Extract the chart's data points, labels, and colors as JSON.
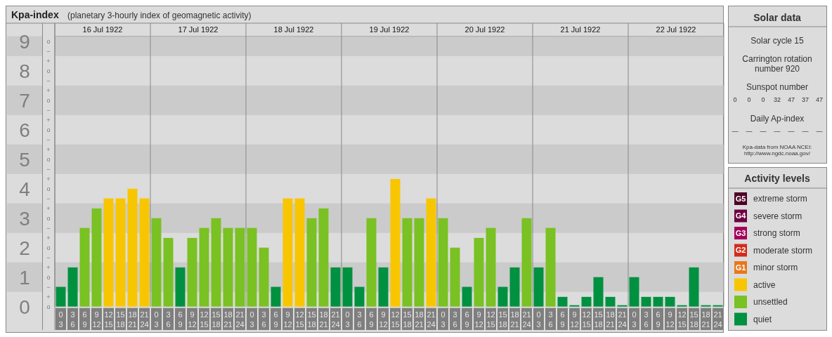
{
  "chart_data": {
    "type": "bar",
    "title": "Kpa-index",
    "subtitle": "(planetary 3-hourly index of geomagnetic activity)",
    "categories": [
      "0\n3",
      "3\n6",
      "6\n9",
      "9\n12",
      "12\n15",
      "15\n18",
      "18\n21",
      "21\n24",
      "0\n3",
      "3\n6",
      "6\n9",
      "9\n12",
      "12\n15",
      "15\n18",
      "18\n21",
      "21\n24",
      "0\n3",
      "3\n6",
      "6\n9",
      "9\n12",
      "12\n15",
      "15\n18",
      "18\n21",
      "21\n24",
      "0\n3",
      "3\n6",
      "6\n9",
      "9\n12",
      "12\n15",
      "15\n18",
      "18\n21",
      "21\n24",
      "0\n3",
      "3\n6",
      "6\n9",
      "9\n12",
      "12\n15",
      "15\n18",
      "18\n21",
      "21\n24",
      "0\n3",
      "3\n6",
      "6\n9",
      "9\n12",
      "12\n15",
      "15\n18",
      "18\n21",
      "21\n24",
      "0\n3",
      "3\n6",
      "6\n9",
      "9\n12",
      "12\n15",
      "15\n18",
      "18\n21",
      "21\n24"
    ],
    "series": [
      {
        "name": "extreme storm",
        "color": "#4d0026",
        "values": [
          null,
          null,
          null,
          null,
          null,
          null,
          null,
          null,
          null,
          null,
          null,
          null,
          null,
          null,
          null,
          null,
          null,
          null,
          null,
          null,
          null,
          null,
          null,
          null,
          null,
          null,
          null,
          null,
          null,
          null,
          null,
          null,
          null,
          null,
          null,
          null,
          null,
          null,
          null,
          null,
          null,
          null,
          null,
          null,
          null,
          null,
          null,
          null,
          null,
          null,
          null,
          null,
          null,
          null,
          null,
          null
        ]
      },
      {
        "name": "severe storm",
        "color": "#6e0040",
        "values": [
          null,
          null,
          null,
          null,
          null,
          null,
          null,
          null,
          null,
          null,
          null,
          null,
          null,
          null,
          null,
          null,
          null,
          null,
          null,
          null,
          null,
          null,
          null,
          null,
          null,
          null,
          null,
          null,
          null,
          null,
          null,
          null,
          null,
          null,
          null,
          null,
          null,
          null,
          null,
          null,
          null,
          null,
          null,
          null,
          null,
          null,
          null,
          null,
          null,
          null,
          null,
          null,
          null,
          null,
          null,
          null
        ]
      },
      {
        "name": "strong storm",
        "color": "#a3005c",
        "values": [
          null,
          null,
          null,
          null,
          null,
          null,
          null,
          null,
          null,
          null,
          null,
          null,
          null,
          null,
          null,
          null,
          null,
          null,
          null,
          null,
          null,
          null,
          null,
          null,
          null,
          null,
          null,
          null,
          null,
          null,
          null,
          null,
          null,
          null,
          null,
          null,
          null,
          null,
          null,
          null,
          null,
          null,
          null,
          null,
          null,
          null,
          null,
          null,
          null,
          null,
          null,
          null,
          null,
          null,
          null,
          null
        ]
      },
      {
        "name": "moderate storm",
        "color": "#d42a1c",
        "values": [
          null,
          null,
          null,
          null,
          null,
          null,
          null,
          null,
          null,
          null,
          null,
          null,
          null,
          null,
          null,
          null,
          null,
          null,
          null,
          null,
          null,
          null,
          null,
          null,
          null,
          null,
          null,
          null,
          null,
          null,
          null,
          null,
          null,
          null,
          null,
          null,
          null,
          null,
          null,
          null,
          null,
          null,
          null,
          null,
          null,
          null,
          null,
          null,
          null,
          null,
          null,
          null,
          null,
          null,
          null,
          null
        ]
      },
      {
        "name": "minor storm",
        "color": "#e8781c",
        "values": [
          null,
          null,
          null,
          null,
          null,
          null,
          null,
          null,
          null,
          null,
          null,
          null,
          null,
          null,
          null,
          null,
          null,
          null,
          null,
          null,
          null,
          null,
          null,
          null,
          null,
          null,
          null,
          null,
          null,
          null,
          null,
          null,
          null,
          null,
          null,
          null,
          null,
          null,
          null,
          null,
          null,
          null,
          null,
          null,
          null,
          null,
          null,
          null,
          null,
          null,
          null,
          null,
          null,
          null,
          null,
          null
        ]
      },
      {
        "name": "active",
        "color": "#f8c600",
        "values": [
          null,
          null,
          null,
          null,
          3.67,
          3.67,
          4,
          3.67,
          null,
          null,
          null,
          null,
          null,
          null,
          null,
          null,
          null,
          null,
          null,
          3.67,
          3.67,
          null,
          null,
          null,
          null,
          null,
          null,
          null,
          4.33,
          null,
          null,
          3.67,
          null,
          null,
          null,
          null,
          null,
          null,
          null,
          null,
          null,
          null,
          null,
          null,
          null,
          null,
          null,
          null,
          null,
          null,
          null,
          null,
          null,
          null,
          null,
          null
        ]
      },
      {
        "name": "unsettled",
        "color": "#7ac123",
        "values": [
          null,
          null,
          2.67,
          3.33,
          null,
          null,
          null,
          null,
          3,
          2.33,
          null,
          2.33,
          2.67,
          3,
          2.67,
          2.67,
          2.67,
          2,
          null,
          null,
          null,
          3,
          3.33,
          null,
          null,
          null,
          3,
          null,
          null,
          3,
          3,
          null,
          3,
          2,
          null,
          2.33,
          2.67,
          null,
          null,
          3,
          null,
          2.67,
          null,
          null,
          null,
          null,
          null,
          null,
          null,
          null,
          null,
          null,
          null,
          null,
          null,
          null
        ]
      },
      {
        "name": "quiet",
        "color": "#009140",
        "values": [
          0.67,
          1.33,
          null,
          null,
          null,
          null,
          null,
          null,
          null,
          null,
          1.33,
          null,
          null,
          null,
          null,
          null,
          null,
          null,
          0.67,
          null,
          null,
          null,
          null,
          1.33,
          1.33,
          0.67,
          null,
          1.33,
          null,
          null,
          null,
          null,
          null,
          null,
          0.67,
          null,
          null,
          0.67,
          1.33,
          null,
          1.33,
          null,
          0.33,
          0,
          0.33,
          1,
          0.33,
          0,
          1,
          0.33,
          0.33,
          0.33,
          0,
          1.33,
          0,
          0
        ]
      }
    ],
    "ylim": [
      0,
      9.17
    ],
    "yticks": [
      0,
      1,
      2,
      3,
      4,
      5,
      6,
      7,
      8,
      9
    ],
    "x2lim": [
      "1922-07-16",
      "1922-07-23"
    ],
    "x2ticks": [
      {
        "value": "1922-07-16",
        "label": null
      },
      {
        "value": "1922-07-16T12:00",
        "label": "16 Jul 1922"
      },
      {
        "value": "1922-07-17",
        "label": null
      },
      {
        "value": "1922-07-17T12:00",
        "label": "17 Jul 1922"
      },
      {
        "value": "1922-07-18",
        "label": null
      },
      {
        "value": "1922-07-18T12:00",
        "label": "18 Jul 1922"
      },
      {
        "value": "1922-07-19",
        "label": null
      },
      {
        "value": "1922-07-19T12:00",
        "label": "19 Jul 1922"
      },
      {
        "value": "1922-07-20",
        "label": null
      },
      {
        "value": "1922-07-20T12:00",
        "label": "20 Jul 1922"
      },
      {
        "value": "1922-07-21",
        "label": null
      },
      {
        "value": "1922-07-21T12:00",
        "label": "21 Jul 1922"
      },
      {
        "value": "1922-07-22",
        "label": null
      },
      {
        "value": "1922-07-22T12:00",
        "label": "22 Jul 1922"
      },
      {
        "value": "1922-07-23",
        "label": null
      }
    ],
    "bands": [
      {
        "axis": "y",
        "from": 0.5,
        "to": 1.5,
        "color": "#cbcbcb"
      },
      {
        "axis": "y",
        "from": 2.5,
        "to": 3.5,
        "color": "#cbcbcb"
      },
      {
        "axis": "y",
        "from": 4.5,
        "to": 5.5,
        "color": "#cbcbcb"
      },
      {
        "axis": "y",
        "from": 6.5,
        "to": 7.5,
        "color": "#cbcbcb"
      },
      {
        "axis": "y",
        "from": 8.5,
        "to": 9.17,
        "color": "#cbcbcb"
      }
    ],
    "grid": "x",
    "legend": "right",
    "legend_title": "Activity levels",
    "annotations": [
      "Solar data",
      "Solar cycle 15",
      "Carrington rotation number 920",
      "Sunspot number",
      "0 0 0 32 47 37 47",
      "Daily Ap-index",
      "— — — — — — —",
      "Kpa-data from NOAA NCEI: http://www.ngdc.noaa.gov/",
      "G5",
      "G4",
      "G3",
      "G2",
      "G1",
      "o",
      "+",
      "−",
      "o",
      "+",
      "−",
      "o",
      "+",
      "−",
      "o",
      "+",
      "−",
      "o",
      "+",
      "−",
      "o",
      "+",
      "−",
      "o",
      "+",
      "−",
      "o",
      "+",
      "−",
      "o",
      "+",
      "−",
      "o"
    ]
  }
}
